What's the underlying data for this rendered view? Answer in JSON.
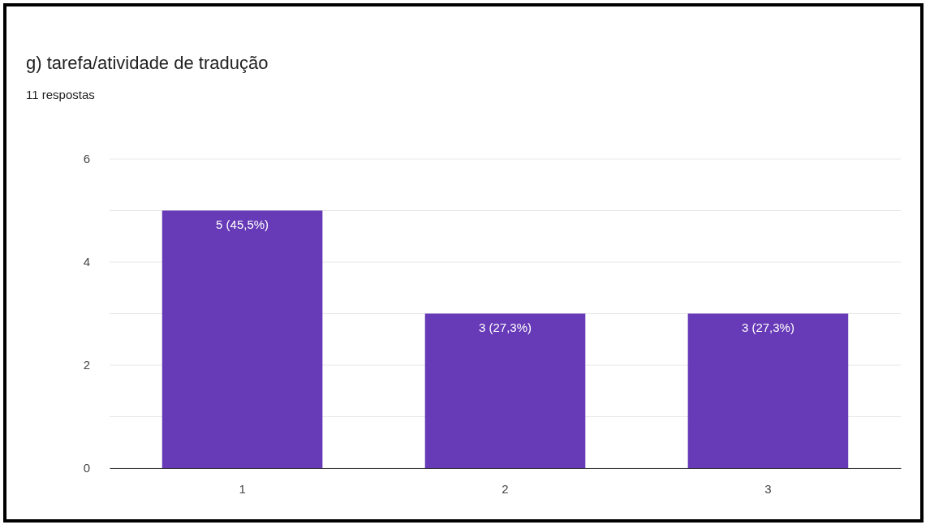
{
  "chart_data": {
    "type": "bar",
    "title": "g) tarefa/atividade de tradução",
    "subtitle": "11 respostas",
    "categories": [
      "1",
      "2",
      "3"
    ],
    "values": [
      5,
      3,
      3
    ],
    "value_labels": [
      "5 (45,5%)",
      "3 (27,3%)",
      "3 (27,3%)"
    ],
    "color": "#673ab7",
    "ylim": [
      0,
      6
    ],
    "yticks": [
      0,
      {
        "value": 1,
        "label": null
      },
      2,
      {
        "value": 3,
        "label": null
      },
      4,
      {
        "value": 5,
        "label": null
      },
      6
    ],
    "grid": "y"
  }
}
